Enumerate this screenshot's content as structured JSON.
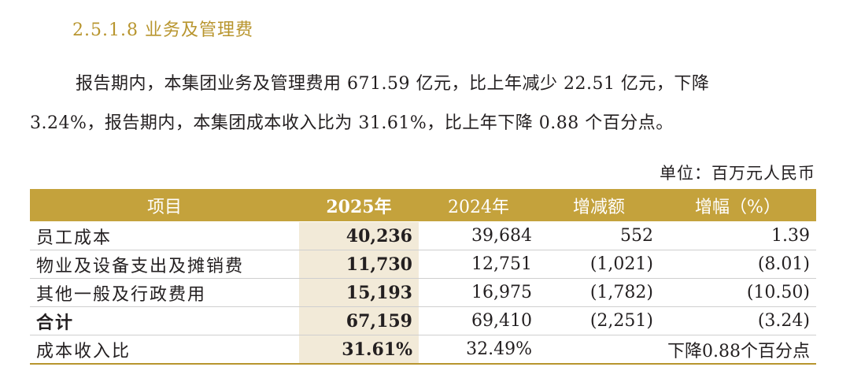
{
  "section": {
    "title": "2.5.1.8 业务及管理费"
  },
  "paragraph": {
    "line1": "报告期内，本集团业务及管理费用 671.59 亿元，比上年减少 22.51 亿元，下降",
    "line2": "3.24%，报告期内，本集团成本收入比为 31.61%，比上年下降 0.88 个百分点。"
  },
  "unit_label": "单位：百万元人民币",
  "table": {
    "headers": {
      "item": "项目",
      "y2025": "2025年",
      "y2024": "2024年",
      "change": "增减额",
      "pct": "增幅（%）"
    },
    "rows": [
      {
        "item": "员工成本",
        "y2025": "40,236",
        "y2024": "39,684",
        "change": "552",
        "pct": "1.39"
      },
      {
        "item": "物业及设备支出及摊销费",
        "y2025": "11,730",
        "y2024": "12,751",
        "change": "(1,021)",
        "pct": "(8.01)"
      },
      {
        "item": "其他一般及行政费用",
        "y2025": "15,193",
        "y2024": "16,975",
        "change": "(1,782)",
        "pct": "(10.50)"
      },
      {
        "item": "合计",
        "y2025": "67,159",
        "y2024": "69,410",
        "change": "(2,251)",
        "pct": "(3.24)"
      }
    ],
    "ratio_row": {
      "item": "成本收入比",
      "y2025": "31.61%",
      "y2024": "32.49%",
      "note": "下降0.88个百分点"
    }
  },
  "colors": {
    "accent_gold": "#c4a23c",
    "title_gold": "#b8952e",
    "highlight_col": "#f2ead8"
  }
}
